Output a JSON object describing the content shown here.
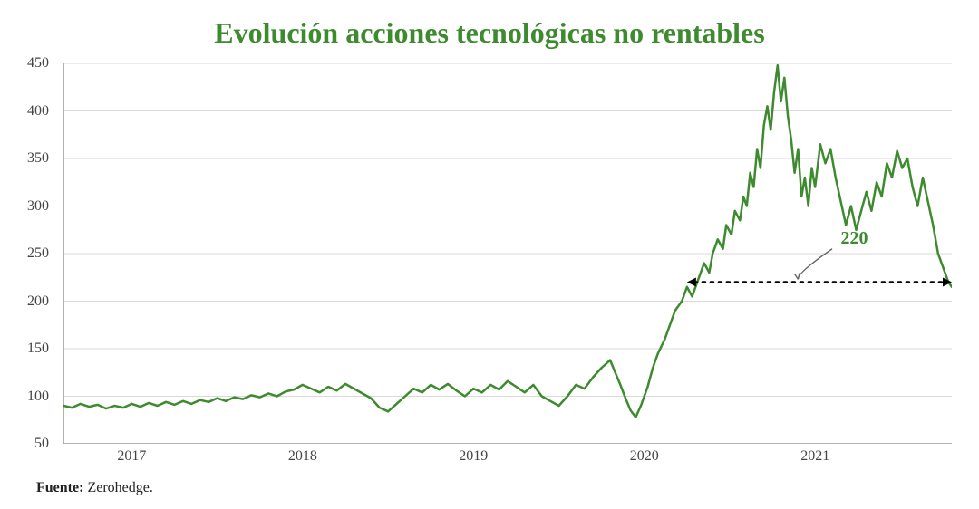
{
  "chart": {
    "type": "line",
    "title": "Evolución acciones tecnológicas no rentables",
    "title_color": "#3e8b2f",
    "title_fontsize": 32,
    "background_color": "#ffffff",
    "line_color": "#3e8b2f",
    "line_width": 2.5,
    "axis_color": "#999999",
    "grid_color": "#cccccc",
    "tick_label_color": "#444444",
    "tick_fontsize": 16,
    "x_range": [
      2016.6,
      2021.8
    ],
    "y_range": [
      50,
      450
    ],
    "y_ticks": [
      50,
      100,
      150,
      200,
      250,
      300,
      350,
      400,
      450
    ],
    "x_ticks": [
      2017,
      2018,
      2019,
      2020,
      2021
    ],
    "x_tick_labels": [
      "2017",
      "2018",
      "2019",
      "2020",
      "2021"
    ],
    "data": [
      [
        2016.6,
        90
      ],
      [
        2016.65,
        88
      ],
      [
        2016.7,
        92
      ],
      [
        2016.75,
        89
      ],
      [
        2016.8,
        91
      ],
      [
        2016.85,
        87
      ],
      [
        2016.9,
        90
      ],
      [
        2016.95,
        88
      ],
      [
        2017.0,
        92
      ],
      [
        2017.05,
        89
      ],
      [
        2017.1,
        93
      ],
      [
        2017.15,
        90
      ],
      [
        2017.2,
        94
      ],
      [
        2017.25,
        91
      ],
      [
        2017.3,
        95
      ],
      [
        2017.35,
        92
      ],
      [
        2017.4,
        96
      ],
      [
        2017.45,
        94
      ],
      [
        2017.5,
        98
      ],
      [
        2017.55,
        95
      ],
      [
        2017.6,
        99
      ],
      [
        2017.65,
        97
      ],
      [
        2017.7,
        101
      ],
      [
        2017.75,
        99
      ],
      [
        2017.8,
        103
      ],
      [
        2017.85,
        100
      ],
      [
        2017.9,
        105
      ],
      [
        2017.95,
        107
      ],
      [
        2018.0,
        112
      ],
      [
        2018.05,
        108
      ],
      [
        2018.1,
        104
      ],
      [
        2018.15,
        110
      ],
      [
        2018.2,
        106
      ],
      [
        2018.25,
        113
      ],
      [
        2018.3,
        108
      ],
      [
        2018.35,
        103
      ],
      [
        2018.4,
        98
      ],
      [
        2018.45,
        88
      ],
      [
        2018.5,
        84
      ],
      [
        2018.55,
        92
      ],
      [
        2018.6,
        100
      ],
      [
        2018.65,
        108
      ],
      [
        2018.7,
        104
      ],
      [
        2018.75,
        112
      ],
      [
        2018.8,
        107
      ],
      [
        2018.85,
        113
      ],
      [
        2018.9,
        106
      ],
      [
        2018.95,
        100
      ],
      [
        2019.0,
        108
      ],
      [
        2019.05,
        104
      ],
      [
        2019.1,
        112
      ],
      [
        2019.15,
        107
      ],
      [
        2019.2,
        116
      ],
      [
        2019.25,
        110
      ],
      [
        2019.3,
        104
      ],
      [
        2019.35,
        112
      ],
      [
        2019.4,
        100
      ],
      [
        2019.45,
        95
      ],
      [
        2019.5,
        90
      ],
      [
        2019.55,
        100
      ],
      [
        2019.6,
        112
      ],
      [
        2019.65,
        108
      ],
      [
        2019.7,
        120
      ],
      [
        2019.75,
        130
      ],
      [
        2019.8,
        138
      ],
      [
        2019.83,
        125
      ],
      [
        2019.86,
        112
      ],
      [
        2019.89,
        98
      ],
      [
        2019.92,
        85
      ],
      [
        2019.95,
        78
      ],
      [
        2019.98,
        90
      ],
      [
        2020.02,
        110
      ],
      [
        2020.05,
        130
      ],
      [
        2020.08,
        145
      ],
      [
        2020.12,
        160
      ],
      [
        2020.15,
        175
      ],
      [
        2020.18,
        190
      ],
      [
        2020.22,
        200
      ],
      [
        2020.25,
        215
      ],
      [
        2020.28,
        205
      ],
      [
        2020.32,
        225
      ],
      [
        2020.35,
        240
      ],
      [
        2020.38,
        230
      ],
      [
        2020.4,
        250
      ],
      [
        2020.43,
        265
      ],
      [
        2020.46,
        255
      ],
      [
        2020.48,
        280
      ],
      [
        2020.51,
        270
      ],
      [
        2020.53,
        295
      ],
      [
        2020.56,
        285
      ],
      [
        2020.58,
        310
      ],
      [
        2020.6,
        300
      ],
      [
        2020.62,
        335
      ],
      [
        2020.64,
        320
      ],
      [
        2020.66,
        360
      ],
      [
        2020.68,
        340
      ],
      [
        2020.7,
        385
      ],
      [
        2020.72,
        405
      ],
      [
        2020.74,
        380
      ],
      [
        2020.76,
        420
      ],
      [
        2020.78,
        448
      ],
      [
        2020.8,
        410
      ],
      [
        2020.82,
        435
      ],
      [
        2020.84,
        395
      ],
      [
        2020.86,
        370
      ],
      [
        2020.88,
        335
      ],
      [
        2020.9,
        360
      ],
      [
        2020.92,
        310
      ],
      [
        2020.94,
        330
      ],
      [
        2020.96,
        300
      ],
      [
        2020.98,
        340
      ],
      [
        2021.0,
        320
      ],
      [
        2021.03,
        365
      ],
      [
        2021.06,
        345
      ],
      [
        2021.09,
        360
      ],
      [
        2021.12,
        330
      ],
      [
        2021.15,
        305
      ],
      [
        2021.18,
        280
      ],
      [
        2021.21,
        300
      ],
      [
        2021.24,
        275
      ],
      [
        2021.27,
        295
      ],
      [
        2021.3,
        315
      ],
      [
        2021.33,
        295
      ],
      [
        2021.36,
        325
      ],
      [
        2021.39,
        310
      ],
      [
        2021.42,
        345
      ],
      [
        2021.45,
        330
      ],
      [
        2021.48,
        358
      ],
      [
        2021.51,
        340
      ],
      [
        2021.54,
        350
      ],
      [
        2021.57,
        320
      ],
      [
        2021.6,
        300
      ],
      [
        2021.63,
        330
      ],
      [
        2021.66,
        305
      ],
      [
        2021.69,
        280
      ],
      [
        2021.72,
        250
      ],
      [
        2021.75,
        235
      ],
      [
        2021.78,
        220
      ],
      [
        2021.8,
        215
      ]
    ],
    "annotation": {
      "label": "220",
      "label_color": "#3e8b2f",
      "label_fontsize": 20,
      "label_pos_x": 2021.15,
      "label_pos_y": 265,
      "dotted_line_y": 220,
      "dotted_line_x_start": 2020.25,
      "dotted_line_x_end": 2021.8,
      "dotted_color": "#000000",
      "arrow_curve_from_x": 2021.1,
      "arrow_curve_from_y": 255,
      "arrow_curve_to_x": 2020.9,
      "arrow_curve_to_y": 223,
      "arrow_color": "#666666"
    },
    "source_label": "Fuente:",
    "source_value": " Zerohedge.",
    "source_fontsize": 16
  }
}
